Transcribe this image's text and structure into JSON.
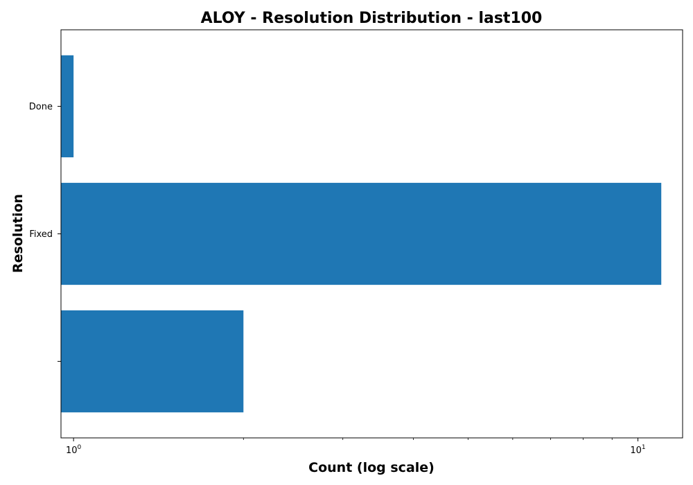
{
  "chart_data": {
    "type": "bar",
    "orientation": "horizontal",
    "title": "ALOY - Resolution Distribution - last100",
    "xlabel": "Count (log scale)",
    "ylabel": "Resolution",
    "x_scale": "log",
    "xlim": [
      0.95,
      12
    ],
    "categories": [
      "",
      "Fixed",
      "Done"
    ],
    "values": [
      2,
      11,
      1
    ],
    "x_ticks": [
      {
        "base": "10",
        "exp": "0",
        "value": 1
      },
      {
        "base": "10",
        "exp": "1",
        "value": 10
      }
    ],
    "bar_color": "#1f77b4",
    "grid": false
  }
}
